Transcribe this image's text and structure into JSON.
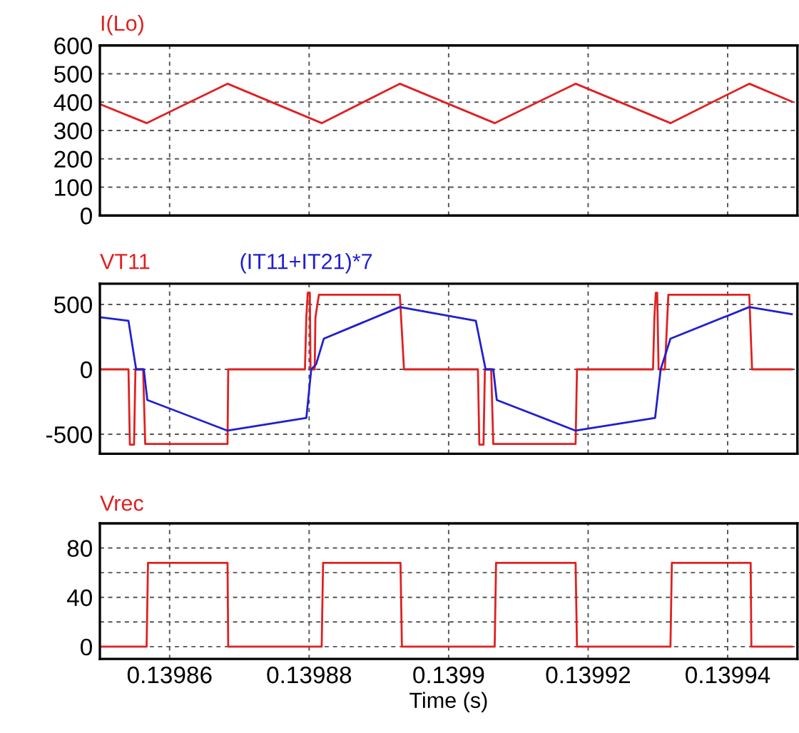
{
  "chart_data": [
    {
      "type": "line",
      "xlim": [
        0.13985,
        0.13995
      ],
      "xticks": [
        0.13986,
        0.13988,
        0.1399,
        0.13992,
        0.13994
      ],
      "ylim": [
        0,
        600
      ],
      "yticks": [
        0,
        100,
        200,
        300,
        400,
        500,
        600
      ],
      "grid": true,
      "tick_labels": "y",
      "series": [
        {
          "name": "I(Lo)",
          "color": "#e02020",
          "x": [
            0.13985,
            0.1398567,
            0.1398683,
            0.1398818,
            0.139893,
            0.1399066,
            0.1399182,
            0.1399318,
            0.1399431,
            0.1399492
          ],
          "values": [
            393,
            326,
            465,
            326,
            465,
            326,
            465,
            326,
            465,
            402
          ]
        }
      ]
    },
    {
      "type": "line",
      "xlim": [
        0.13985,
        0.13995
      ],
      "xticks": [
        0.13986,
        0.13988,
        0.1399,
        0.13992,
        0.13994
      ],
      "ylim": [
        -650,
        660
      ],
      "yticks": [
        -500,
        0,
        500
      ],
      "grid": true,
      "tick_labels": "y",
      "series": [
        {
          "name": "VT11",
          "color": "#e02020",
          "x": [
            0.13985,
            0.1398541,
            0.1398543,
            0.1398549,
            0.1398551,
            0.1398562,
            0.1398565,
            0.1398683,
            0.1398684,
            0.1398794,
            0.1398796,
            0.1398798,
            0.1398801,
            0.1398802,
            0.1398808,
            0.1398809,
            0.1398814,
            0.139893,
            0.1398936,
            0.1399042,
            0.1399044,
            0.139905,
            0.1399052,
            0.1399061,
            0.1399064,
            0.1399182,
            0.1399184,
            0.1399293,
            0.1399295,
            0.1399297,
            0.1399299,
            0.1399301,
            0.139931,
            0.1399315,
            0.1399431,
            0.1399435,
            0.1399492
          ],
          "values": [
            0,
            0,
            -580,
            -580,
            0,
            0,
            -575,
            -575,
            0,
            0,
            400,
            590,
            590,
            0,
            0,
            400,
            575,
            575,
            0,
            0,
            -580,
            -580,
            0,
            0,
            -575,
            -575,
            0,
            0,
            400,
            590,
            590,
            0,
            0,
            575,
            575,
            0,
            0
          ]
        },
        {
          "name": "(IT11+IT21)*7",
          "color": "#2020d0",
          "x": [
            0.13985,
            0.1398541,
            0.1398552,
            0.1398563,
            0.1398568,
            0.1398683,
            0.1398796,
            0.1398803,
            0.139881,
            0.1398821,
            0.139893,
            0.1399039,
            0.1399053,
            0.1399064,
            0.1399069,
            0.1399182,
            0.1399296,
            0.1399304,
            0.1399318,
            0.1399431,
            0.1399492
          ],
          "values": [
            402,
            374,
            0,
            0,
            -236,
            -472,
            -374,
            0,
            39,
            236,
            480,
            374,
            0,
            0,
            -236,
            -472,
            -374,
            0,
            236,
            480,
            425
          ]
        }
      ]
    },
    {
      "type": "line",
      "xlim": [
        0.13985,
        0.13995
      ],
      "xticks": [
        0.13986,
        0.13988,
        0.1399,
        0.13992,
        0.13994
      ],
      "ylim": [
        -10,
        100
      ],
      "yticks": [
        0,
        {
          "value": 20,
          "label": null
        },
        40,
        {
          "value": 60,
          "label": null
        },
        80
      ],
      "grid": true,
      "xlabel": "Time (s)",
      "series": [
        {
          "name": "Vrec",
          "color": "#e02020",
          "x": [
            0.13985,
            0.1398567,
            0.1398569,
            0.1398683,
            0.1398684,
            0.1398818,
            0.139882,
            0.1398931,
            0.1398933,
            0.1399066,
            0.1399068,
            0.1399182,
            0.1399184,
            0.1399318,
            0.139932,
            0.1399433,
            0.1399434,
            0.1399492
          ],
          "values": [
            0,
            0,
            68,
            68,
            0,
            0,
            68,
            68,
            0,
            0,
            68,
            68,
            0,
            0,
            68,
            68,
            0,
            0
          ]
        }
      ]
    }
  ]
}
